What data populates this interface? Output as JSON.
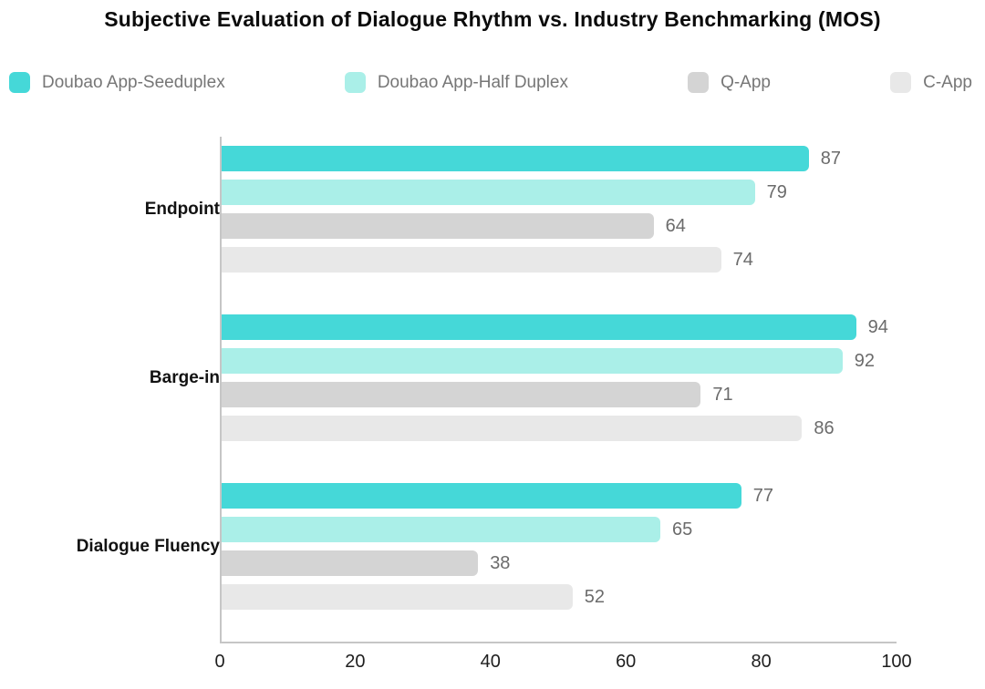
{
  "title": "Subjective Evaluation of Dialogue Rhythm vs. Industry Benchmarking (MOS)",
  "colors": {
    "axis_line": "#c6c6c6",
    "value_label": "#6b6b6b",
    "tick_label": "#1e1e1e",
    "category_label": "#121212",
    "legend_label": "#767676",
    "background": "#ffffff"
  },
  "chart_data": {
    "type": "bar",
    "orientation": "horizontal",
    "title": "Subjective Evaluation of Dialogue Rhythm vs. Industry Benchmarking (MOS)",
    "categories": [
      "Endpoint",
      "Barge-in",
      "Dialogue Fluency"
    ],
    "series": [
      {
        "name": "Doubao App-Seeduplex",
        "color": "#45d8d8",
        "values": [
          87,
          94,
          77
        ]
      },
      {
        "name": "Doubao App-Half Duplex",
        "color": "#aaefe8",
        "values": [
          79,
          92,
          65
        ]
      },
      {
        "name": "Q-App",
        "color": "#d4d4d4",
        "values": [
          64,
          71,
          38
        ]
      },
      {
        "name": "C-App",
        "color": "#e8e8e8",
        "values": [
          74,
          86,
          52
        ]
      }
    ],
    "xlim": [
      0,
      100
    ],
    "x_ticks": [
      0,
      20,
      40,
      60,
      80,
      100
    ],
    "xlabel": "",
    "ylabel": "",
    "legend_position": "top",
    "grid": false,
    "value_labels_shown": true
  }
}
